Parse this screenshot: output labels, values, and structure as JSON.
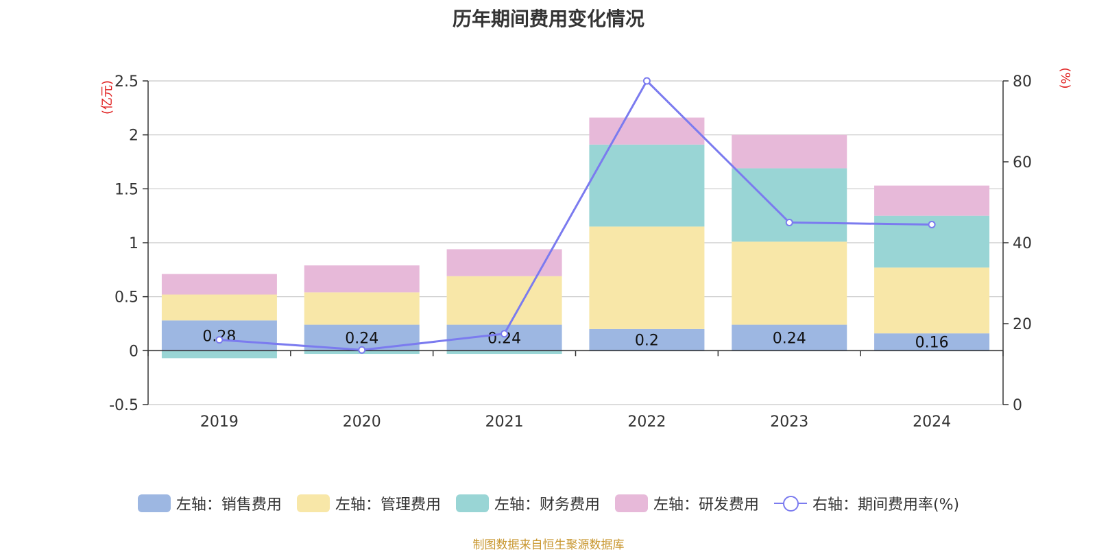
{
  "title": "历年期间费用变化情况",
  "source": "制图数据来自恒生聚源数据库",
  "chart_data": {
    "type": "bar",
    "stacked": true,
    "categories": [
      "2019",
      "2020",
      "2021",
      "2022",
      "2023",
      "2024"
    ],
    "left_axis": {
      "unit": "(亿元)",
      "ylim": [
        -0.5,
        2.5
      ],
      "ticks": [
        "-0.5",
        "0",
        "0.5",
        "1",
        "1.5",
        "2",
        "2.5"
      ]
    },
    "right_axis": {
      "unit": "(%)",
      "ylim": [
        0,
        80
      ],
      "ticks": [
        "0",
        "20",
        "40",
        "60",
        "80"
      ]
    },
    "series": [
      {
        "name": "左轴：销售费用",
        "axis": "left",
        "type": "bar",
        "color": "#9DB7E2",
        "values": [
          0.28,
          0.24,
          0.24,
          0.2,
          0.24,
          0.16
        ],
        "labels": [
          "0.28",
          "0.24",
          "0.24",
          "0.2",
          "0.24",
          "0.16"
        ]
      },
      {
        "name": "左轴：管理费用",
        "axis": "left",
        "type": "bar",
        "color": "#F8E7A8",
        "values": [
          0.24,
          0.3,
          0.45,
          0.95,
          0.77,
          0.61
        ]
      },
      {
        "name": "左轴：财务费用",
        "axis": "left",
        "type": "bar",
        "color": "#99D5D5",
        "values": [
          -0.07,
          -0.03,
          -0.03,
          0.76,
          0.68,
          0.48
        ]
      },
      {
        "name": "左轴：研发费用",
        "axis": "left",
        "type": "bar",
        "color": "#E7B9D9",
        "values": [
          0.19,
          0.25,
          0.25,
          0.25,
          0.31,
          0.28
        ]
      },
      {
        "name": "右轴：期间费用率(%)",
        "axis": "right",
        "type": "line",
        "color": "#7B7BEF",
        "values": [
          16,
          13.5,
          17.5,
          80,
          45,
          44.5
        ]
      }
    ],
    "grid": true,
    "legend_position": "bottom"
  }
}
